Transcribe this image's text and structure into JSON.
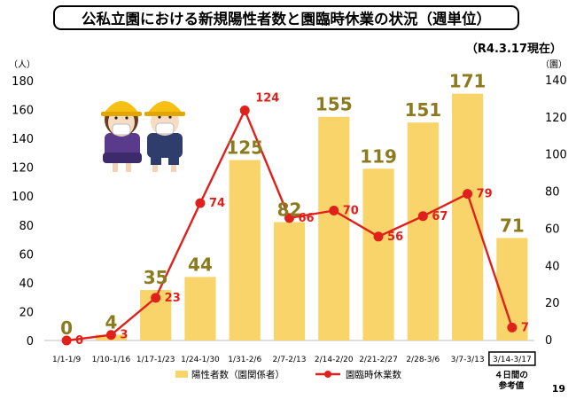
{
  "title": "公私立園における新規陽性者数と園臨時休業の状況（週単位）",
  "as_of": "（R4.3.17現在）",
  "page_number": "19",
  "colors": {
    "bar": "#f9d46a",
    "line": "#e0201b",
    "bar_label": "#8b7a1e"
  },
  "illustration": "two-children-with-hardhats-and-masks",
  "chart_data": {
    "type": "bar",
    "categories": [
      "1/1-1/9",
      "1/10-1/16",
      "1/17-1/23",
      "1/24-1/30",
      "1/31-2/6",
      "2/7-2/13",
      "2/14-2/20",
      "2/21-2/27",
      "2/28-3/6",
      "3/7-3/13",
      "3/14-3/17"
    ],
    "series": [
      {
        "name": "陽性者数（園関係者）",
        "type": "bar",
        "axis": "left",
        "values": [
          0,
          4,
          35,
          44,
          125,
          82,
          155,
          119,
          151,
          171,
          71
        ]
      },
      {
        "name": "園臨時休業数",
        "type": "line",
        "axis": "right",
        "values": [
          0,
          3,
          23,
          74,
          124,
          66,
          70,
          56,
          67,
          79,
          7
        ]
      }
    ],
    "y_left": {
      "unit": "（人）",
      "ylim": [
        0,
        180
      ],
      "ticks": [
        0,
        20,
        40,
        60,
        80,
        100,
        120,
        140,
        160,
        180
      ]
    },
    "y_right": {
      "unit": "（園）",
      "ylim": [
        0,
        140
      ],
      "ticks": [
        0,
        20,
        40,
        60,
        80,
        100,
        120,
        140
      ]
    },
    "grid": false,
    "legend": "bottom",
    "highlighted_category_index": 10,
    "highlight_note": [
      "４日間の",
      "参考値"
    ]
  }
}
